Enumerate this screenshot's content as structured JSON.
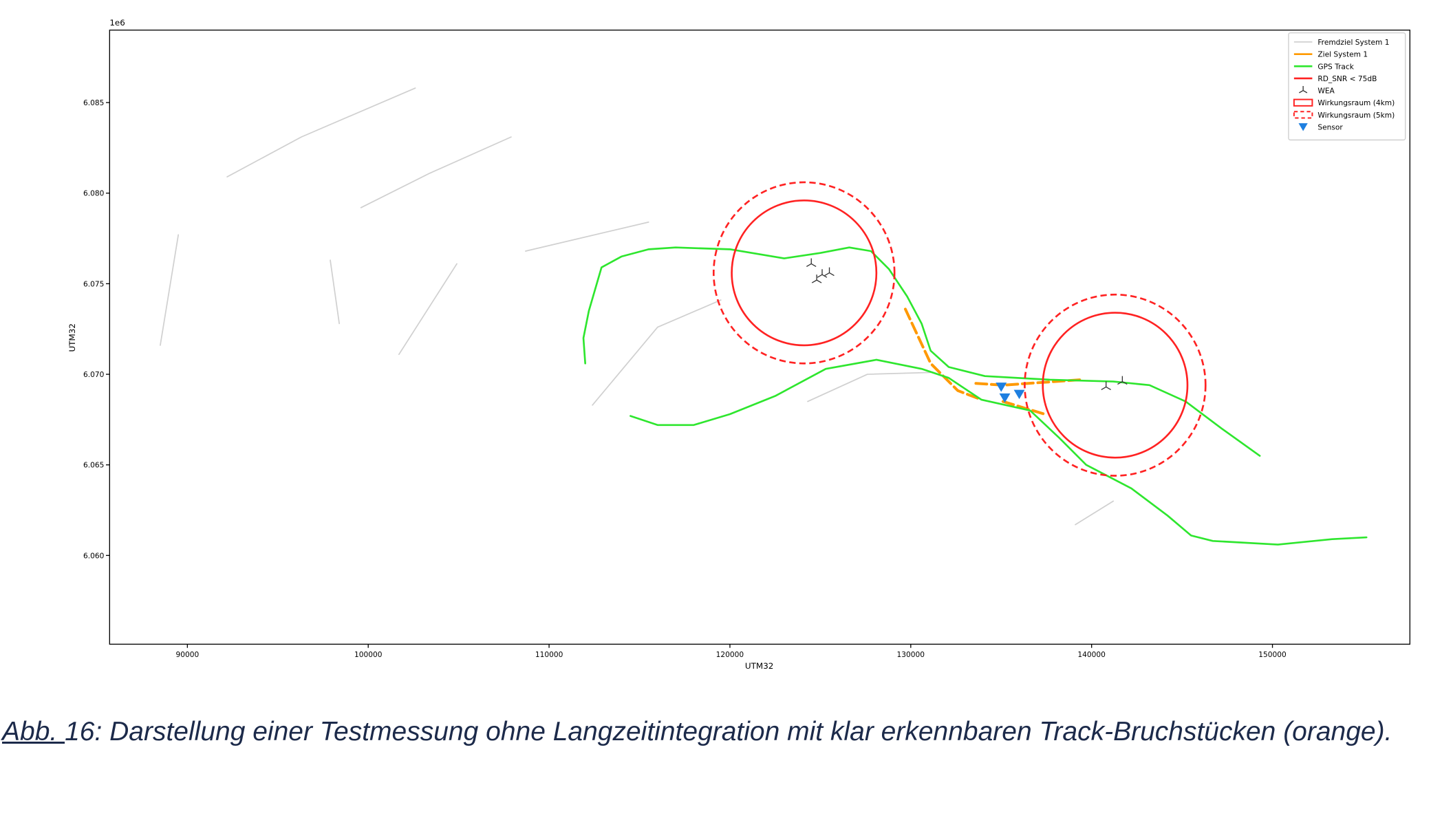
{
  "chart_data": {
    "type": "line",
    "xlabel": "UTM32",
    "ylabel": "UTM32",
    "y_offset": "1e6",
    "xlim": [
      85700,
      157600
    ],
    "ylim": [
      6.0551,
      6.089
    ],
    "xticks": [
      90000,
      100000,
      110000,
      120000,
      130000,
      140000,
      150000
    ],
    "yticks": [
      {
        "value": 6.06,
        "label": "6.060"
      },
      6.065,
      {
        "value": 6.07,
        "label": "6.070"
      },
      6.075,
      {
        "value": 6.08,
        "label": "6.080"
      },
      6.085
    ],
    "legend": "upper right",
    "series": [
      {
        "name": "Fremdziel System 1",
        "kind": "line",
        "color": "#d0d0d0",
        "x": [
          88500,
          89500,
          null,
          92200,
          96300,
          102600,
          null,
          99600,
          103400,
          107900,
          null,
          101700,
          104900,
          null,
          112400,
          116000,
          119500,
          null,
          108700,
          115500,
          null,
          124300,
          127600,
          131100,
          null,
          139100,
          141200,
          null,
          97900,
          98400
        ],
        "y": [
          6.0716,
          6.0777,
          null,
          6.0809,
          6.0831,
          6.0858,
          null,
          6.0792,
          6.0811,
          6.0831,
          null,
          6.0711,
          6.0761,
          null,
          6.0683,
          6.0726,
          6.0741,
          null,
          6.0768,
          6.0784,
          null,
          6.0685,
          6.07,
          6.0701,
          null,
          6.0617,
          6.063,
          null,
          6.0763,
          6.0728
        ]
      },
      {
        "name": "Ziel System 1",
        "kind": "line",
        "color": "#ff9900",
        "x": [
          129700,
          131100,
          132600,
          133900,
          null,
          133600,
          135100,
          139400,
          null,
          135100,
          137400
        ],
        "y": [
          6.0736,
          6.0706,
          6.0691,
          6.0686,
          null,
          6.0695,
          6.0694,
          6.0697,
          null,
          6.0685,
          6.0678
        ]
      },
      {
        "name": "GPS Track",
        "kind": "line",
        "color": "#2ee62e",
        "x": [
          112000,
          111900,
          112200,
          112900,
          114000,
          115500,
          117000,
          120000,
          123000,
          125000,
          126600,
          127800,
          128800,
          129800,
          130600,
          131100,
          132100,
          134100,
          137700,
          141200,
          143200,
          145200,
          147200,
          149300,
          null,
          114500,
          116000,
          118000,
          120000,
          122500,
          125300,
          128100,
          130600,
          132100,
          133900,
          136600,
          138200,
          139700,
          142200,
          144200,
          145500,
          146700,
          150300,
          153300,
          155200
        ],
        "y": [
          6.0706,
          6.072,
          6.0735,
          6.0759,
          6.0765,
          6.0769,
          6.077,
          6.0769,
          6.0764,
          6.0767,
          6.077,
          6.0768,
          6.0758,
          6.0743,
          6.0728,
          6.0713,
          6.0704,
          6.0699,
          6.0697,
          6.0696,
          6.0694,
          6.0685,
          6.067,
          6.0655,
          null,
          6.0677,
          6.0672,
          6.0672,
          6.0678,
          6.0688,
          6.0703,
          6.0708,
          6.0703,
          6.0698,
          6.0686,
          6.068,
          6.0665,
          6.065,
          6.0637,
          6.0622,
          6.0611,
          6.0608,
          6.0606,
          6.0609,
          6.061
        ]
      },
      {
        "name": "RD_SNR < 75dB",
        "kind": "line",
        "color": "#ff2222",
        "x": [],
        "y": []
      },
      {
        "name": "WEA",
        "kind": "scatter",
        "marker": "tri",
        "color": "#333333",
        "x": [
          124500,
          125100,
          124800,
          125500,
          140800,
          141700
        ],
        "y": [
          6.0761,
          6.0755,
          6.0752,
          6.0756,
          6.0693,
          6.0696
        ]
      },
      {
        "name": "Wirkungsraum (4km)",
        "kind": "circle",
        "linestyle": "solid",
        "color": "#ff2222",
        "centers": [
          [
            124100,
            6.0756
          ],
          [
            141300,
            6.0694
          ]
        ],
        "radius": 4000
      },
      {
        "name": "Wirkungsraum (5km)",
        "kind": "circle",
        "linestyle": "dashed",
        "color": "#ff2222",
        "centers": [
          [
            124100,
            6.0756
          ],
          [
            141300,
            6.0694
          ]
        ],
        "radius": 5000
      },
      {
        "name": "Sensor",
        "kind": "scatter",
        "marker": "v",
        "color": "#1e7fe0",
        "x": [
          135000,
          135200,
          136000
        ],
        "y": [
          6.0693,
          6.0687,
          6.0689
        ]
      }
    ]
  },
  "caption": {
    "label": "Abb. ",
    "text": "16: Darstellung einer Testmessung ohne Langzeitintegration mit klar erkennbaren Track-Bruchstücken (orange)."
  }
}
